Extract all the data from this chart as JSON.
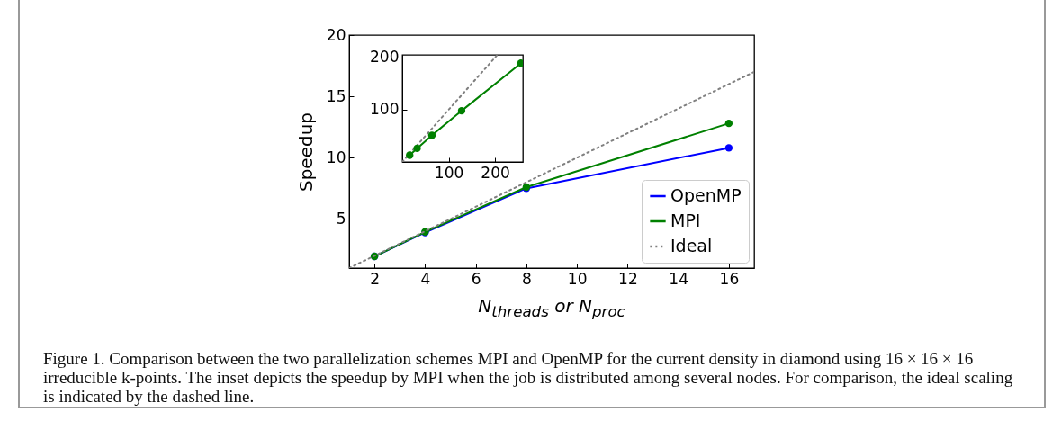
{
  "chart_data": [
    {
      "type": "line",
      "xlabel": "N$_{threads}$ or N$_{proc}$",
      "ylabel": "Speedup",
      "xlim": [
        1,
        17
      ],
      "ylim": [
        1,
        20
      ],
      "xticks": [
        2,
        4,
        6,
        8,
        10,
        12,
        14,
        16
      ],
      "yticks": [
        5,
        10,
        15,
        20
      ],
      "marker": "circle",
      "legend": "bottom right",
      "series": [
        {
          "name": "OpenMP",
          "color": "#0000ff",
          "x": [
            2,
            4,
            8,
            16
          ],
          "values": [
            1.95,
            3.9,
            7.5,
            10.8
          ]
        },
        {
          "name": "MPI",
          "color": "#008000",
          "x": [
            2,
            4,
            8,
            16
          ],
          "values": [
            1.95,
            3.95,
            7.6,
            12.8
          ]
        },
        {
          "name": "Ideal",
          "color": "#808080",
          "marker": "none",
          "line_style": "dotted",
          "x": [
            1,
            17
          ],
          "values": [
            1,
            17
          ]
        }
      ],
      "annotations": [
        "Figure 1.  Comparison between the two parallelization schemes MPI and OpenMP for the current density in diamond using 16 × 16 × 16 irreducible k-points. The inset depicts the speedup by MPI when the job is distributed among several nodes. For comparison, the ideal scaling is indicated by the dashed line."
      ]
    },
    {
      "type": "line",
      "xlim": [
        0,
        260
      ],
      "ylim": [
        0,
        205
      ],
      "xticks": [
        100,
        200
      ],
      "yticks": [
        100,
        200
      ],
      "marker": "circle",
      "series": [
        {
          "color": "#808080",
          "marker": "none",
          "line_style": "dotted",
          "x": [
            0,
            205
          ],
          "values": [
            0,
            205
          ]
        },
        {
          "color": "#008000",
          "x": [
            16,
            32,
            64,
            128,
            256
          ],
          "values": [
            13,
            26,
            51,
            98,
            189
          ]
        }
      ]
    }
  ]
}
